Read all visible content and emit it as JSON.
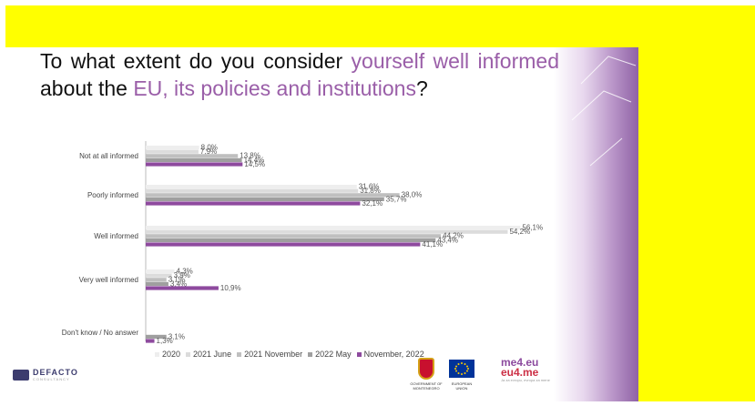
{
  "title_parts": {
    "p1": "To what extent do you consider ",
    "p2": "yourself well informed",
    "p3": " about the ",
    "p4": "EU, its policies and institutions",
    "p5": "?"
  },
  "colors": {
    "highlight": "#9a5ea8",
    "yellow": "#ffff00",
    "series": [
      "#eeeeee",
      "#dcdcdc",
      "#bfbfbf",
      "#9f9f9f",
      "#8e4a9e"
    ]
  },
  "chart_data": {
    "type": "bar",
    "orientation": "horizontal",
    "categories": [
      "Not at all informed",
      "Poorly informed",
      "Well informed",
      "Very well informed",
      "Don't know / No answer"
    ],
    "series": [
      {
        "name": "2020",
        "values": [
          8.0,
          31.6,
          56.1,
          4.3,
          null
        ],
        "labels": [
          "8,0%",
          "31,6%",
          "56,1%",
          "4,3%",
          ""
        ]
      },
      {
        "name": "2021 June",
        "values": [
          7.9,
          31.8,
          54.2,
          3.9,
          null
        ],
        "labels": [
          "7,9%",
          "31,8%",
          "54,2%",
          "3,9%",
          ""
        ]
      },
      {
        "name": "2021 November",
        "values": [
          13.8,
          38.0,
          44.2,
          3.1,
          null
        ],
        "labels": [
          "13,8%",
          "38,0%",
          "44,2%",
          "3,1%",
          ""
        ]
      },
      {
        "name": "2022 May",
        "values": [
          14.4,
          35.7,
          43.4,
          3.4,
          3.1
        ],
        "labels": [
          "14,4%",
          "35,7%",
          "43,4%",
          "3,4%",
          "3,1%"
        ]
      },
      {
        "name": "November, 2022",
        "values": [
          14.5,
          32.1,
          41.1,
          10.9,
          1.3
        ],
        "labels": [
          "14,5%",
          "32,1%",
          "41,1%",
          "10,9%",
          "1,3%"
        ]
      }
    ],
    "xlim": [
      0,
      60
    ],
    "grid": false,
    "legend_position": "bottom"
  },
  "logos": {
    "defacto": "DEFACTO",
    "defacto_sub": "CONSULTANCY",
    "gov_caption": "GOVERNMENT OF MONTENEGRO",
    "eu_caption": "EUROPEAN UNION",
    "me4eu_line1": "me4.eu",
    "me4eu_line2": "eu4.me",
    "me4eu_tag": "Ja za evropu, evropa za mene"
  }
}
